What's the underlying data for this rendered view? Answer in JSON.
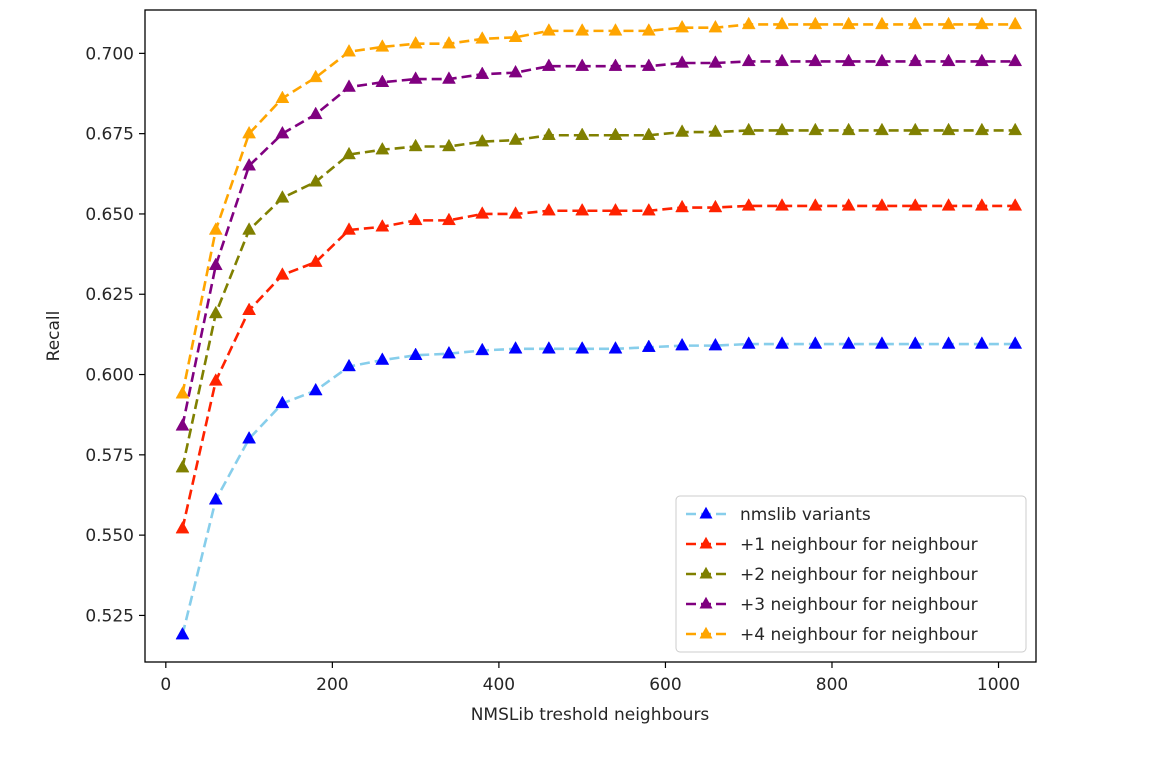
{
  "chart_data": {
    "type": "line",
    "title": "",
    "xlabel": "NMSLib treshold neighbours",
    "ylabel": "Recall",
    "xlim": [
      -25,
      1045
    ],
    "ylim": [
      0.5105,
      0.7135
    ],
    "xticks": [
      0,
      200,
      400,
      600,
      800,
      1000
    ],
    "yticks": [
      0.525,
      0.55,
      0.575,
      0.6,
      0.625,
      0.65,
      0.675,
      0.7
    ],
    "xtick_labels": [
      "0",
      "200",
      "400",
      "600",
      "800",
      "1000"
    ],
    "ytick_labels": [
      "0.525",
      "0.550",
      "0.575",
      "0.600",
      "0.625",
      "0.650",
      "0.675",
      "0.700"
    ],
    "grid": false,
    "legend_position": "lower-right",
    "marker": "triangle-up",
    "linestyle": "dashed",
    "x": [
      20,
      60,
      100,
      140,
      180,
      220,
      260,
      300,
      340,
      380,
      420,
      460,
      500,
      540,
      580,
      620,
      660,
      700,
      740,
      780,
      820,
      860,
      900,
      940,
      980,
      1020
    ],
    "series": [
      {
        "name": "nmslib variants",
        "line_color": "#87ceeb",
        "marker_color": "#0000ff",
        "values": [
          0.519,
          0.561,
          0.58,
          0.591,
          0.595,
          0.6025,
          0.6045,
          0.606,
          0.6065,
          0.6075,
          0.608,
          0.608,
          0.608,
          0.608,
          0.6085,
          0.609,
          0.609,
          0.6095,
          0.6095,
          0.6095,
          0.6095,
          0.6095,
          0.6095,
          0.6095,
          0.6095,
          0.6095
        ]
      },
      {
        "name": "+1 neighbour for neighbour",
        "line_color": "#ff2200",
        "marker_color": "#ff2200",
        "values": [
          0.552,
          0.598,
          0.62,
          0.631,
          0.635,
          0.645,
          0.646,
          0.648,
          0.648,
          0.65,
          0.65,
          0.651,
          0.651,
          0.651,
          0.651,
          0.652,
          0.652,
          0.6525,
          0.6525,
          0.6525,
          0.6525,
          0.6525,
          0.6525,
          0.6525,
          0.6525,
          0.6525
        ]
      },
      {
        "name": "+2 neighbour for neighbour",
        "line_color": "#808000",
        "marker_color": "#808000",
        "values": [
          0.571,
          0.619,
          0.645,
          0.655,
          0.66,
          0.6685,
          0.67,
          0.671,
          0.671,
          0.6725,
          0.673,
          0.6745,
          0.6745,
          0.6745,
          0.6745,
          0.6755,
          0.6755,
          0.676,
          0.676,
          0.676,
          0.676,
          0.676,
          0.676,
          0.676,
          0.676,
          0.676
        ]
      },
      {
        "name": "+3 neighbour for neighbour",
        "line_color": "#800080",
        "marker_color": "#800080",
        "values": [
          0.584,
          0.634,
          0.665,
          0.675,
          0.681,
          0.6895,
          0.691,
          0.692,
          0.692,
          0.6935,
          0.694,
          0.696,
          0.696,
          0.696,
          0.696,
          0.697,
          0.697,
          0.6975,
          0.6975,
          0.6975,
          0.6975,
          0.6975,
          0.6975,
          0.6975,
          0.6975,
          0.6975
        ]
      },
      {
        "name": "+4 neighbour for neighbour",
        "line_color": "#ffa500",
        "marker_color": "#ffa500",
        "values": [
          0.594,
          0.645,
          0.675,
          0.686,
          0.6925,
          0.7005,
          0.702,
          0.703,
          0.703,
          0.7045,
          0.705,
          0.707,
          0.707,
          0.707,
          0.707,
          0.708,
          0.708,
          0.709,
          0.709,
          0.709,
          0.709,
          0.709,
          0.709,
          0.709,
          0.709,
          0.709
        ]
      }
    ]
  }
}
